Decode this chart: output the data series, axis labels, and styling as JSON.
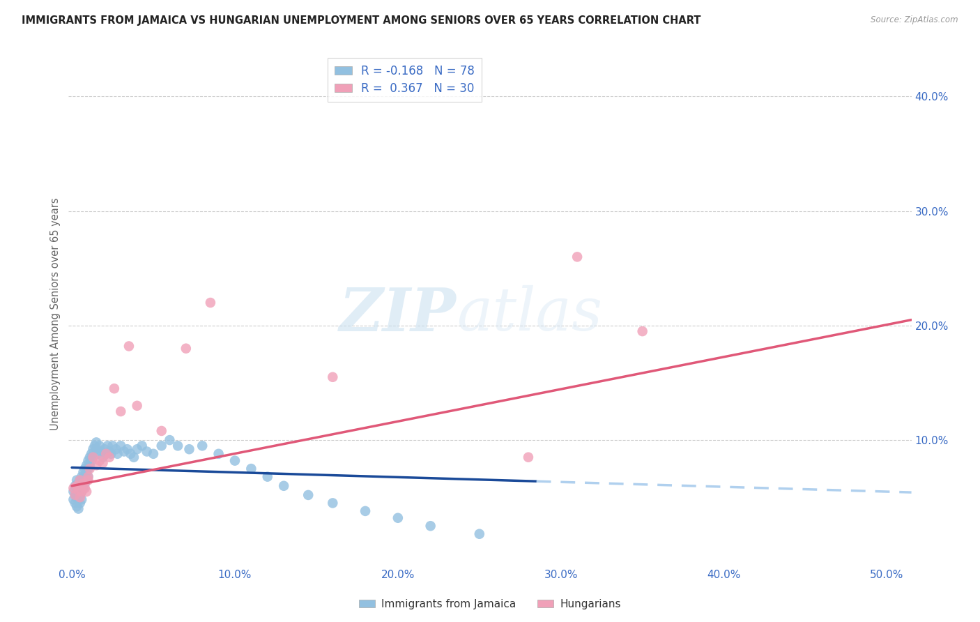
{
  "title": "IMMIGRANTS FROM JAMAICA VS HUNGARIAN UNEMPLOYMENT AMONG SENIORS OVER 65 YEARS CORRELATION CHART",
  "source": "Source: ZipAtlas.com",
  "ylabel": "Unemployment Among Seniors over 65 years",
  "x_tick_labels": [
    "0.0%",
    "10.0%",
    "20.0%",
    "30.0%",
    "40.0%",
    "50.0%"
  ],
  "x_tick_values": [
    0.0,
    0.1,
    0.2,
    0.3,
    0.4,
    0.5
  ],
  "y_tick_labels": [
    "10.0%",
    "20.0%",
    "30.0%",
    "40.0%"
  ],
  "y_tick_values": [
    0.1,
    0.2,
    0.3,
    0.4
  ],
  "xlim": [
    -0.002,
    0.515
  ],
  "ylim": [
    -0.01,
    0.43
  ],
  "legend_labels": [
    "Immigrants from Jamaica",
    "Hungarians"
  ],
  "r_blue": -0.168,
  "n_blue": 78,
  "r_pink": 0.367,
  "n_pink": 30,
  "color_blue": "#92c0e0",
  "color_pink": "#f0a0b8",
  "line_blue_solid": "#1a4a99",
  "line_pink_solid": "#e05878",
  "line_blue_dashed": "#b0d0ee",
  "watermark_zip": "ZIP",
  "watermark_atlas": "atlas",
  "blue_x": [
    0.001,
    0.001,
    0.002,
    0.002,
    0.002,
    0.003,
    0.003,
    0.003,
    0.003,
    0.004,
    0.004,
    0.004,
    0.004,
    0.005,
    0.005,
    0.005,
    0.005,
    0.006,
    0.006,
    0.006,
    0.006,
    0.007,
    0.007,
    0.007,
    0.008,
    0.008,
    0.008,
    0.009,
    0.009,
    0.01,
    0.01,
    0.01,
    0.011,
    0.011,
    0.012,
    0.012,
    0.013,
    0.013,
    0.014,
    0.015,
    0.015,
    0.016,
    0.017,
    0.018,
    0.019,
    0.02,
    0.021,
    0.022,
    0.023,
    0.024,
    0.025,
    0.027,
    0.028,
    0.03,
    0.032,
    0.034,
    0.036,
    0.038,
    0.04,
    0.043,
    0.046,
    0.05,
    0.055,
    0.06,
    0.065,
    0.072,
    0.08,
    0.09,
    0.1,
    0.11,
    0.12,
    0.13,
    0.145,
    0.16,
    0.18,
    0.2,
    0.22,
    0.25
  ],
  "blue_y": [
    0.055,
    0.048,
    0.06,
    0.052,
    0.045,
    0.058,
    0.065,
    0.05,
    0.042,
    0.062,
    0.056,
    0.048,
    0.04,
    0.065,
    0.058,
    0.052,
    0.045,
    0.068,
    0.062,
    0.055,
    0.048,
    0.072,
    0.065,
    0.058,
    0.075,
    0.068,
    0.062,
    0.078,
    0.072,
    0.082,
    0.075,
    0.068,
    0.085,
    0.078,
    0.088,
    0.082,
    0.092,
    0.085,
    0.095,
    0.098,
    0.092,
    0.088,
    0.095,
    0.09,
    0.085,
    0.092,
    0.088,
    0.095,
    0.09,
    0.088,
    0.095,
    0.092,
    0.088,
    0.095,
    0.09,
    0.092,
    0.088,
    0.085,
    0.092,
    0.095,
    0.09,
    0.088,
    0.095,
    0.1,
    0.095,
    0.092,
    0.095,
    0.088,
    0.082,
    0.075,
    0.068,
    0.06,
    0.052,
    0.045,
    0.038,
    0.032,
    0.025,
    0.018
  ],
  "pink_x": [
    0.001,
    0.002,
    0.003,
    0.004,
    0.005,
    0.005,
    0.006,
    0.007,
    0.008,
    0.009,
    0.01,
    0.011,
    0.013,
    0.015,
    0.017,
    0.019,
    0.021,
    0.023,
    0.026,
    0.03,
    0.035,
    0.04,
    0.01,
    0.055,
    0.07,
    0.085,
    0.16,
    0.28,
    0.31,
    0.35
  ],
  "pink_y": [
    0.058,
    0.052,
    0.06,
    0.056,
    0.05,
    0.065,
    0.055,
    0.062,
    0.058,
    0.055,
    0.065,
    0.075,
    0.085,
    0.078,
    0.082,
    0.08,
    0.088,
    0.085,
    0.145,
    0.125,
    0.182,
    0.13,
    0.068,
    0.108,
    0.18,
    0.22,
    0.155,
    0.085,
    0.26,
    0.195
  ],
  "blue_line_x_start": 0.0,
  "blue_line_x_solid_end": 0.285,
  "blue_line_x_dashed_end": 0.515,
  "blue_line_y_start": 0.076,
  "blue_line_y_solid_end": 0.064,
  "blue_line_y_dashed_end": 0.02,
  "pink_line_x_start": 0.0,
  "pink_line_x_end": 0.515,
  "pink_line_y_start": 0.06,
  "pink_line_y_end": 0.205
}
